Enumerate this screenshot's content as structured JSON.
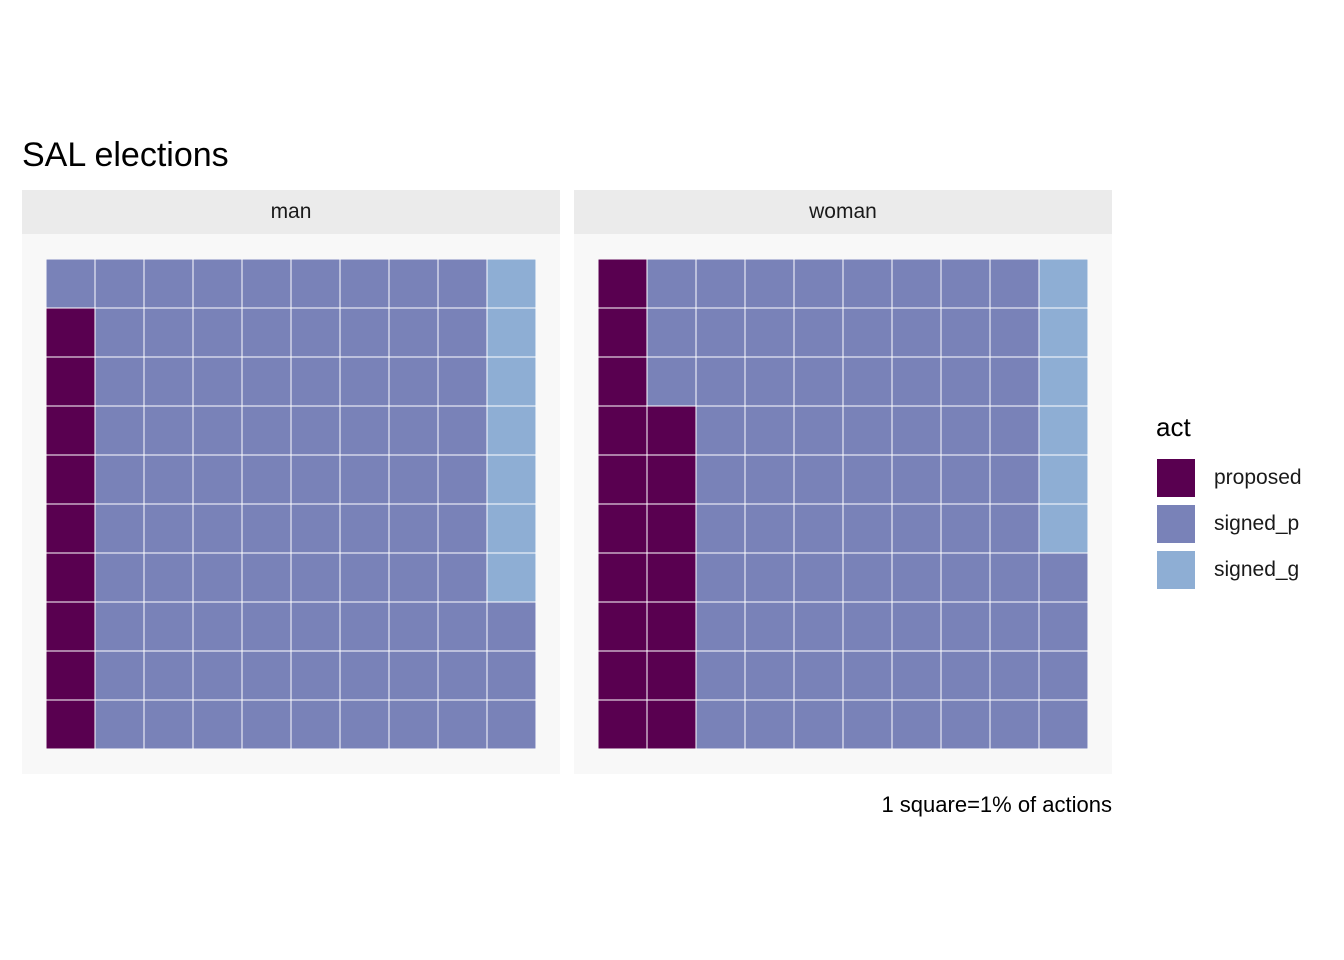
{
  "chart_data": {
    "type": "waffle",
    "title": "SAL elections",
    "caption": "1 square=1% of actions",
    "legend": {
      "title": "act",
      "placement": "right",
      "entries": [
        {
          "name": "proposed",
          "color": "#590050"
        },
        {
          "name": "signed_p",
          "color": "#7982b8"
        },
        {
          "name": "signed_g",
          "color": "#8eaed4"
        }
      ]
    },
    "grid": {
      "rows": 10,
      "cols": 10
    },
    "facets": [
      {
        "label": "man",
        "values": {
          "proposed": 9,
          "signed_p": 84,
          "signed_g": 7
        }
      },
      {
        "label": "woman",
        "values": {
          "proposed": 17,
          "signed_p": 77,
          "signed_g": 6
        }
      }
    ]
  }
}
